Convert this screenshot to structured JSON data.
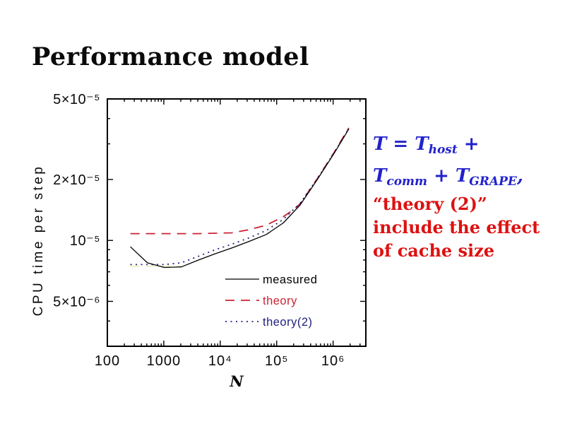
{
  "slide": {
    "title": "Performance model",
    "formula": {
      "color": "#2222cc",
      "line1": {
        "t1": "T = T",
        "sub1": "host",
        "t2": " +"
      },
      "line2": {
        "t1": "T",
        "sub1": "comm",
        "t2": " + T",
        "sub2": "GRAPE",
        "t3": ","
      }
    },
    "note": {
      "color": "#dd1111",
      "lines": [
        "“theory (2)”",
        "include the effect",
        "of cache size"
      ]
    }
  },
  "chart_data": {
    "type": "line",
    "title": "",
    "xlabel": "N",
    "ylabel": "CPU time per step",
    "xscale": "log",
    "yscale": "log",
    "xlim": [
      100,
      3800000
    ],
    "ylim": [
      3e-06,
      5e-05
    ],
    "grid": false,
    "x_ticks": [
      {
        "v": 100,
        "label": "100"
      },
      {
        "v": 1000,
        "label": "1000"
      },
      {
        "v": 10000,
        "label": "10⁴"
      },
      {
        "v": 100000,
        "label": "10⁵"
      },
      {
        "v": 1000000,
        "label": "10⁶"
      }
    ],
    "y_ticks": [
      {
        "v": 5e-05,
        "label": "5×10⁻⁵"
      },
      {
        "v": 2e-05,
        "label": "2×10⁻⁵"
      },
      {
        "v": 1e-05,
        "label": "10⁻⁵"
      },
      {
        "v": 5e-06,
        "label": "5×10⁻⁶"
      }
    ],
    "series": [
      {
        "name": "cache-artifact",
        "color": "#ece59e",
        "style": "dashed",
        "width": 1.2,
        "in_legend": false,
        "points": [
          [
            256,
            7.45e-06
          ],
          [
            2000,
            7.45e-06
          ]
        ]
      },
      {
        "name": "theory",
        "color": "#cc2233",
        "style": "dashed",
        "width": 1.8,
        "in_legend": true,
        "points": [
          [
            256,
            1.08e-05
          ],
          [
            1000,
            1.08e-05
          ],
          [
            4000,
            1.08e-05
          ],
          [
            16000,
            1.09e-05
          ],
          [
            32768,
            1.13e-05
          ],
          [
            65536,
            1.19e-05
          ],
          [
            131072,
            1.31e-05
          ],
          [
            200000,
            1.42e-05
          ],
          [
            262144,
            1.52e-05
          ],
          [
            524288,
            2.02e-05
          ],
          [
            1048576,
            2.73e-05
          ],
          [
            1900000,
            3.6e-05
          ]
        ]
      },
      {
        "name": "theory(2)",
        "color": "#202080",
        "style": "dotted",
        "width": 1.8,
        "in_legend": true,
        "points": [
          [
            256,
            7.6e-06
          ],
          [
            512,
            7.6e-06
          ],
          [
            1024,
            7.6e-06
          ],
          [
            2048,
            7.75e-06
          ],
          [
            4096,
            8.35e-06
          ],
          [
            8192,
            9e-06
          ],
          [
            16384,
            9.6e-06
          ],
          [
            32768,
            1.03e-05
          ],
          [
            65536,
            1.12e-05
          ],
          [
            131072,
            1.27e-05
          ],
          [
            262144,
            1.53e-05
          ],
          [
            524288,
            2.02e-05
          ],
          [
            1048576,
            2.72e-05
          ],
          [
            1900000,
            3.57e-05
          ]
        ]
      },
      {
        "name": "measured",
        "color": "#000000",
        "style": "solid",
        "width": 1.3,
        "in_legend": true,
        "points": [
          [
            256,
            9.3e-06
          ],
          [
            512,
            7.75e-06
          ],
          [
            1024,
            7.35e-06
          ],
          [
            2048,
            7.4e-06
          ],
          [
            4096,
            8e-06
          ],
          [
            8192,
            8.6e-06
          ],
          [
            16384,
            9.2e-06
          ],
          [
            32768,
            9.9e-06
          ],
          [
            65536,
            1.07e-05
          ],
          [
            131072,
            1.22e-05
          ],
          [
            262144,
            1.5e-05
          ],
          [
            524288,
            2e-05
          ],
          [
            1048576,
            2.7e-05
          ],
          [
            1900000,
            3.55e-05
          ]
        ]
      }
    ],
    "legend": {
      "position": "inside-bottom",
      "entries": [
        "measured",
        "theory",
        "theory(2)"
      ]
    }
  }
}
